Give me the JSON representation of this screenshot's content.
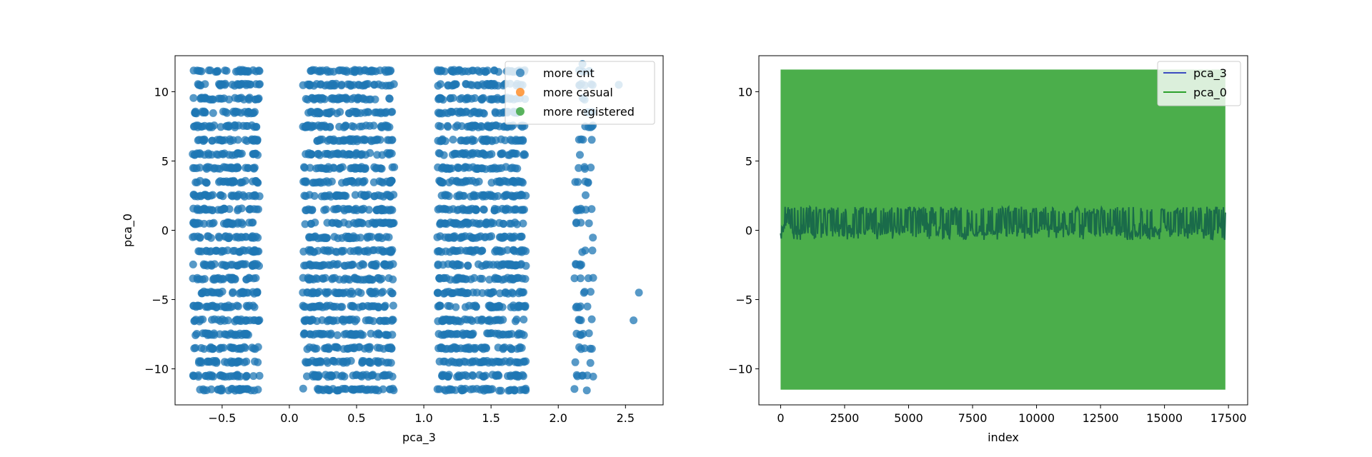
{
  "chart_data": [
    {
      "type": "scatter",
      "xlabel": "pca_3",
      "ylabel": "pca_0",
      "xlim": [
        -0.85,
        2.78
      ],
      "ylim": [
        -12.6,
        12.6
      ],
      "xticks": [
        -0.5,
        0.0,
        0.5,
        1.0,
        1.5,
        2.0,
        2.5
      ],
      "xtick_labels": [
        "−0.5",
        "0.0",
        "0.5",
        "1.0",
        "1.5",
        "2.0",
        "2.5"
      ],
      "yticks": [
        -10,
        -5,
        0,
        5,
        10
      ],
      "ytick_labels": [
        "−10",
        "−5",
        "0",
        "5",
        "10"
      ],
      "grid": false,
      "legend_position": "top-right",
      "series": [
        {
          "name": "more cnt",
          "color": "#1f77b4",
          "y_levels": [
            -11.5,
            -10.5,
            -9.5,
            -8.5,
            -7.5,
            -6.5,
            -5.5,
            -4.5,
            -3.5,
            -2.5,
            -1.5,
            -0.5,
            0.5,
            1.5,
            2.5,
            3.5,
            4.5,
            5.5,
            6.5,
            7.5,
            8.5,
            9.5,
            10.5,
            11.5
          ],
          "clusters": [
            {
              "x_range": [
                -0.72,
                -0.22
              ]
            },
            {
              "x_range": [
                0.1,
                0.78
              ]
            },
            {
              "x_range": [
                1.1,
                1.76
              ]
            },
            {
              "x_range": [
                2.12,
                2.26
              ]
            }
          ],
          "outliers": [
            [
              2.6,
              -4.5
            ],
            [
              2.56,
              -6.5
            ],
            [
              2.45,
              10.5
            ],
            [
              2.2,
              7.5
            ],
            [
              2.18,
              12.0
            ]
          ]
        },
        {
          "name": "more casual",
          "color": "#ff7f0e",
          "points": []
        },
        {
          "name": "more registered",
          "color": "#2ca02c",
          "points": []
        }
      ]
    },
    {
      "type": "line",
      "xlabel": "index",
      "ylabel": "",
      "xlim": [
        -850,
        18250
      ],
      "ylim": [
        -12.6,
        12.6
      ],
      "xticks": [
        0,
        2500,
        5000,
        7500,
        10000,
        12500,
        15000,
        17500
      ],
      "xtick_labels": [
        "0",
        "2500",
        "5000",
        "7500",
        "10000",
        "12500",
        "15000",
        "17500"
      ],
      "yticks": [
        -10,
        -5,
        0,
        5,
        10
      ],
      "ytick_labels": [
        "−10",
        "−5",
        "0",
        "5",
        "10"
      ],
      "grid": false,
      "legend_position": "top-right",
      "series": [
        {
          "name": "pca_3",
          "color": "#3b4cc0",
          "x_range": [
            0,
            17379
          ],
          "band": [
            -0.7,
            1.7
          ],
          "mean": 0.1
        },
        {
          "name": "pca_0",
          "color": "#2ca02c",
          "x_range": [
            0,
            17379
          ],
          "band": [
            -11.5,
            11.6
          ]
        }
      ]
    }
  ]
}
